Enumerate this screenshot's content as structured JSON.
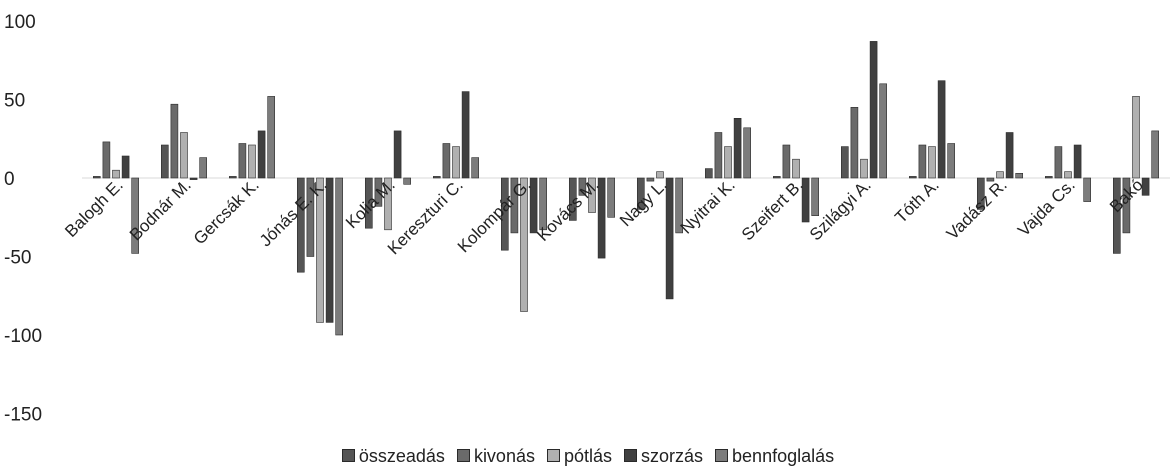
{
  "chart_data": {
    "type": "bar",
    "title": "",
    "xlabel": "",
    "ylabel": "",
    "ylim": [
      -150,
      100
    ],
    "yticks": [
      100,
      50,
      0,
      -50,
      -100,
      -150
    ],
    "grid": false,
    "legend_position": "bottom",
    "categories": [
      "Balogh E.",
      "Bodnár M.",
      "Gercsák K.",
      "Jónás E. K.",
      "Kolia M.",
      "Kereszturi C.",
      "Kolompár G.",
      "Kovács M.",
      "Nagy L.",
      "Nyitrai K.",
      "Szeifert B.",
      "Szilágyi A.",
      "Tóth A.",
      "Vadász R.",
      "Vajda Cs.",
      "Bakó"
    ],
    "series": [
      {
        "name": "összeadás",
        "color": "#555555",
        "values": [
          1,
          21,
          1,
          -60,
          -32,
          1,
          -46,
          -27,
          -20,
          6,
          1,
          20,
          1,
          -20,
          1,
          -48
        ]
      },
      {
        "name": "kivonás",
        "color": "#6a6a6a",
        "values": [
          23,
          47,
          22,
          -50,
          -18,
          22,
          -35,
          -11,
          -2,
          29,
          21,
          45,
          21,
          -2,
          20,
          -35
        ]
      },
      {
        "name": "pótlás",
        "color": "#b0b0b0",
        "values": [
          5,
          29,
          21,
          -92,
          -33,
          20,
          -85,
          -22,
          4,
          20,
          12,
          12,
          20,
          4,
          4,
          52
        ]
      },
      {
        "name": "szorzás",
        "color": "#404040",
        "values": [
          14,
          -1,
          30,
          -92,
          30,
          55,
          -35,
          -51,
          -77,
          38,
          -28,
          87,
          62,
          29,
          21,
          -11
        ]
      },
      {
        "name": "bennfoglalás",
        "color": "#7c7c7c",
        "values": [
          -48,
          13,
          52,
          -100,
          -4,
          13,
          -33,
          -25,
          -35,
          32,
          -24,
          60,
          22,
          3,
          -15,
          30
        ]
      }
    ]
  }
}
